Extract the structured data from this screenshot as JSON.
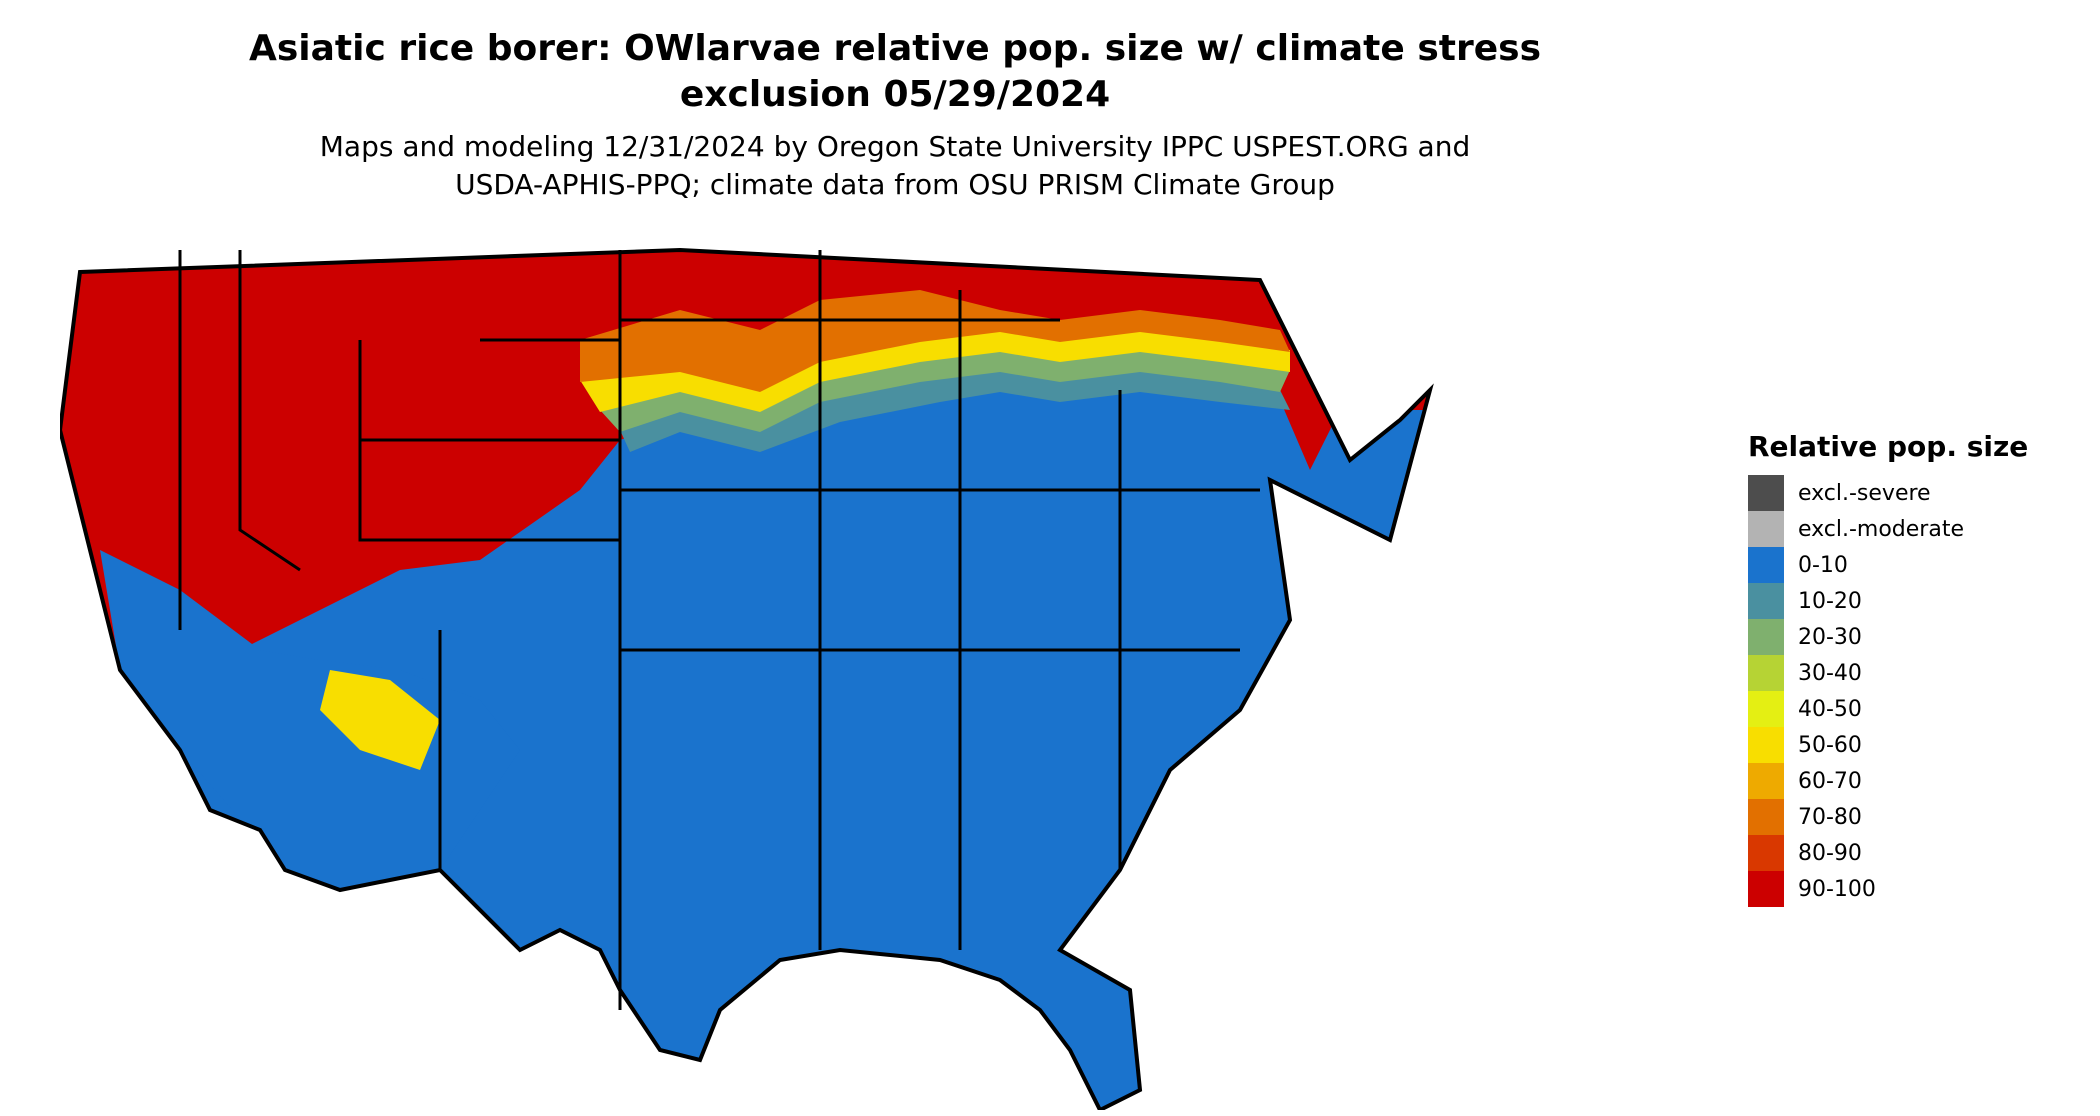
{
  "title_line1": "Asiatic rice borer: OWlarvae relative pop. size w/ climate stress",
  "title_line2": "exclusion 05/29/2024",
  "subtitle_line1": "Maps and modeling 12/31/2024 by Oregon State University IPPC USPEST.ORG and",
  "subtitle_line2": "USDA-APHIS-PPQ; climate data from OSU PRISM Climate Group",
  "legend": {
    "title": "Relative pop. size",
    "items": [
      {
        "label": "excl.-severe",
        "color": "#4d4d4d"
      },
      {
        "label": "excl.-moderate",
        "color": "#b3b3b3"
      },
      {
        "label": "0-10",
        "color": "#1a73cd"
      },
      {
        "label": "10-20",
        "color": "#4a90a0"
      },
      {
        "label": "20-30",
        "color": "#7fb06e"
      },
      {
        "label": "30-40",
        "color": "#b6d334"
      },
      {
        "label": "40-50",
        "color": "#e4ef13"
      },
      {
        "label": "50-60",
        "color": "#f8de00"
      },
      {
        "label": "60-70",
        "color": "#eeaa00"
      },
      {
        "label": "70-80",
        "color": "#e27000"
      },
      {
        "label": "80-90",
        "color": "#d93800"
      },
      {
        "label": "90-100",
        "color": "#cc0000"
      }
    ]
  },
  "map": {
    "outline_color": "#000000"
  }
}
